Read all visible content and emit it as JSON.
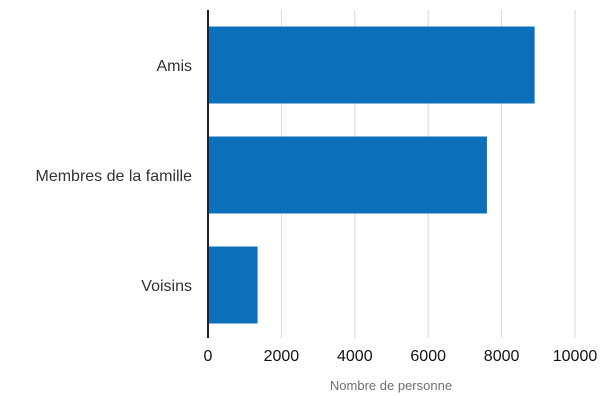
{
  "chart_data": {
    "type": "bar",
    "orientation": "horizontal",
    "categories": [
      "Amis",
      "Membres de la famille",
      "Voisins"
    ],
    "values": [
      8900,
      7600,
      1350
    ],
    "xlabel": "Nombre de personne",
    "xlim": [
      0,
      10000
    ],
    "xticks": [
      0,
      2000,
      4000,
      6000,
      8000,
      10000
    ],
    "tick_labels": [
      "0",
      "2000",
      "4000",
      "6000",
      "8000",
      "10000"
    ],
    "grid": true,
    "legend": "none",
    "colors": {
      "bar": "#0b6fba",
      "grid": "#d9d9d9",
      "axis": "#222222"
    }
  }
}
